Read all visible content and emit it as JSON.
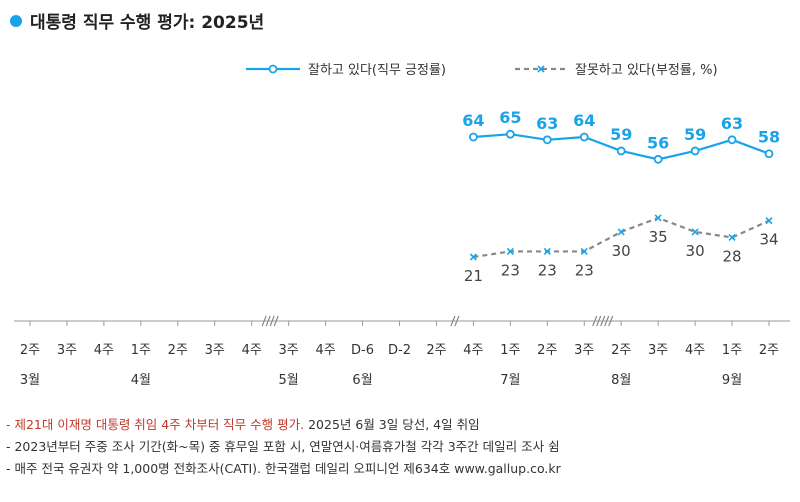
{
  "title": "대통령 직무 수행 평가: 2025년",
  "colors": {
    "approve": "#1aa3e8",
    "disapprove": "#888888",
    "accent_note": "#c0392b",
    "axis": "#999999"
  },
  "notes": [
    {
      "highlight": "- 제21대 이재명 대통령 취임 4주 차부터 직무 수행 평가.",
      "rest": " 2025년 6월 3일 당선, 4일 취임"
    },
    {
      "highlight": "",
      "rest": "- 2023년부터 주중 조사 기간(화~목) 중 휴무일 포함 시, 연말연시·여름휴가철 각각 3주간 데일리 조사 쉼"
    },
    {
      "highlight": "",
      "rest": "- 매주 전국 유권자 약 1,000명 전화조사(CATI). 한국갤럽 데일리 오피니언 제634호 www.gallup.co.kr"
    }
  ],
  "chart_data": {
    "type": "line",
    "title": "대통령 직무 수행 평가: 2025년",
    "ylim": [
      0,
      100
    ],
    "grid": false,
    "legend_position": "top-right",
    "x_ticks": [
      "2주",
      "3주",
      "4주",
      "1주",
      "2주",
      "3주",
      "4주",
      "3주",
      "4주",
      "D-6",
      "D-2",
      "2주",
      "4주",
      "1주",
      "2주",
      "3주",
      "2주",
      "3주",
      "4주",
      "1주",
      "2주"
    ],
    "month_labels": [
      {
        "label": "3월",
        "tick_index": 0
      },
      {
        "label": "4월",
        "tick_index": 3
      },
      {
        "label": "5월",
        "tick_index": 7
      },
      {
        "label": "6월",
        "tick_index": 9
      },
      {
        "label": "7월",
        "tick_index": 13
      },
      {
        "label": "8월",
        "tick_index": 16
      },
      {
        "label": "9월",
        "tick_index": 19
      }
    ],
    "axis_breaks": [
      {
        "after_tick_index": 6,
        "marks": 4
      },
      {
        "after_tick_index": 11,
        "marks": 2
      },
      {
        "after_tick_index": 15,
        "marks": 5
      }
    ],
    "x": [
      "4주",
      "1주",
      "2주",
      "3주",
      "2주",
      "3주",
      "4주",
      "1주",
      "2주"
    ],
    "x_tick_index": [
      12,
      13,
      14,
      15,
      16,
      17,
      18,
      19,
      20
    ],
    "series": [
      {
        "name": "잘하고 있다(직무 긍정률)",
        "values": [
          64,
          65,
          63,
          64,
          59,
          56,
          59,
          63,
          58
        ],
        "style": "solid",
        "marker": "circle",
        "color": "#1aa3e8"
      },
      {
        "name": "잘못하고 있다(부정률, %)",
        "values": [
          21,
          23,
          23,
          23,
          30,
          35,
          30,
          28,
          34
        ],
        "style": "dashed",
        "marker": "x",
        "color": "#888888"
      }
    ]
  }
}
